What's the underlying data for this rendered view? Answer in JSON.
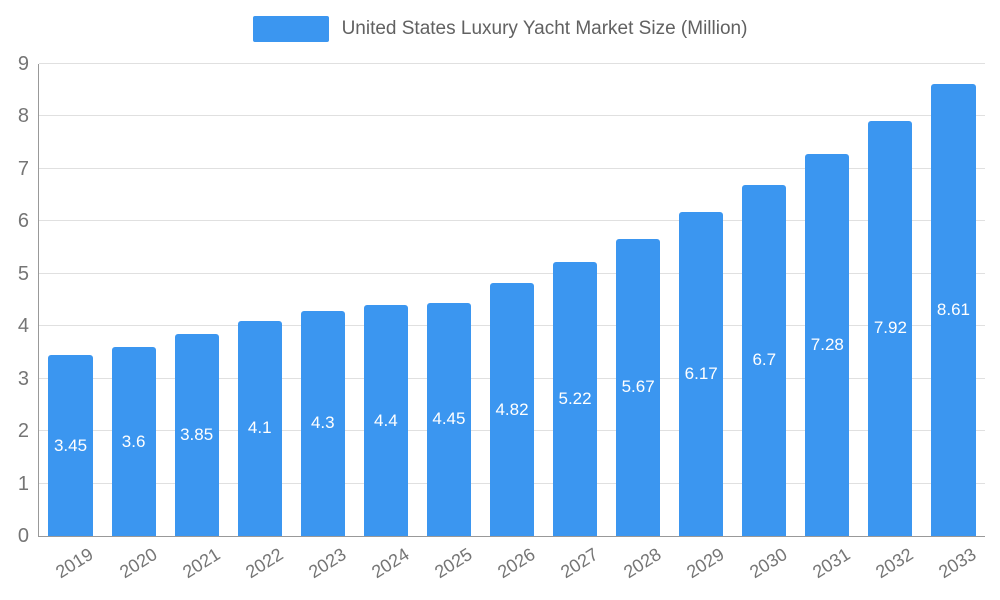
{
  "chart_data": {
    "type": "bar",
    "title": "United States Luxury Yacht Market Size (Million)",
    "legend": [
      "United States Luxury Yacht Market Size (Million)"
    ],
    "legend_position": "top",
    "categories": [
      "2019",
      "2020",
      "2021",
      "2022",
      "2023",
      "2024",
      "2025",
      "2026",
      "2027",
      "2028",
      "2029",
      "2030",
      "2031",
      "2032",
      "2033"
    ],
    "values": [
      3.45,
      3.6,
      3.85,
      4.1,
      4.3,
      4.4,
      4.45,
      4.82,
      5.22,
      5.67,
      6.17,
      6.7,
      7.28,
      7.92,
      8.61
    ],
    "xlabel": "",
    "ylabel": "",
    "ylim": [
      0,
      9
    ],
    "y_ticks": [
      0,
      1,
      2,
      3,
      4,
      5,
      6,
      7,
      8,
      9
    ],
    "grid": true,
    "value_labels_shown": true,
    "colors": {
      "bar": "#3b96f0",
      "bar_value_label": "#ffffff",
      "axis_text": "#757575",
      "grid_line": "#e0e0e0",
      "axis_line": "#999999",
      "legend_text": "#616161",
      "background": "#ffffff"
    }
  }
}
